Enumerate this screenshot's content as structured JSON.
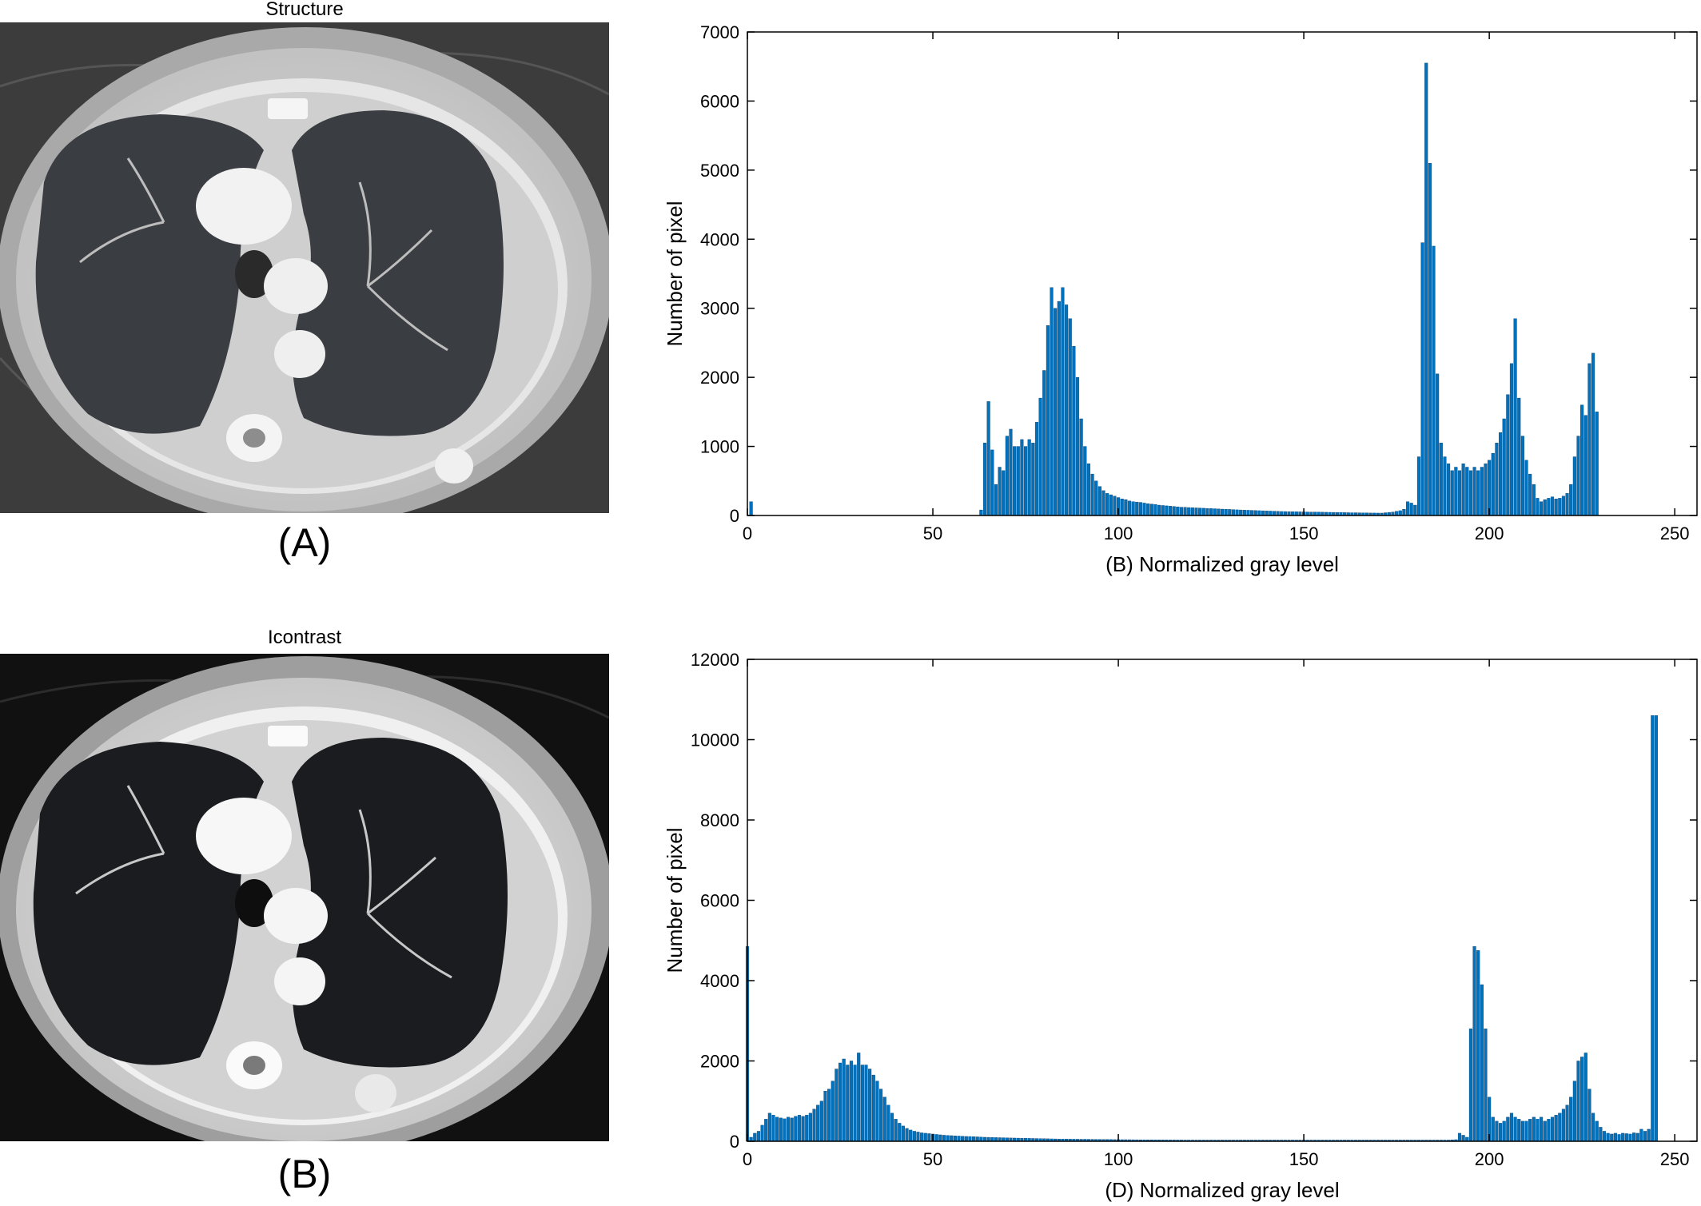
{
  "panels": {
    "a": {
      "title": "Structure",
      "letter": "(A)"
    },
    "b": {
      "title": "Icontrast",
      "letter": "(B)"
    }
  },
  "colors": {
    "bar": "#0072BD",
    "bar_edge": "#0b3f6e",
    "axis": "#000000"
  },
  "chart_data": [
    {
      "type": "bar",
      "xlabel": "(B) Normalized gray level",
      "ylabel": "Number of pixel",
      "xlim": [
        0,
        256
      ],
      "ylim": [
        0,
        7000
      ],
      "xticks": [
        0,
        50,
        100,
        150,
        200,
        250
      ],
      "yticks": [
        0,
        1000,
        2000,
        3000,
        4000,
        5000,
        6000,
        7000
      ],
      "x_start": 0,
      "values": [
        0,
        200,
        0,
        0,
        0,
        0,
        0,
        0,
        0,
        0,
        0,
        0,
        0,
        0,
        0,
        0,
        0,
        0,
        0,
        0,
        0,
        0,
        0,
        0,
        0,
        0,
        0,
        0,
        0,
        0,
        0,
        0,
        0,
        0,
        0,
        0,
        0,
        0,
        0,
        0,
        0,
        0,
        0,
        0,
        0,
        0,
        0,
        0,
        0,
        0,
        0,
        0,
        0,
        0,
        0,
        0,
        0,
        0,
        0,
        0,
        0,
        0,
        0,
        80,
        1050,
        1650,
        950,
        450,
        700,
        650,
        1150,
        1250,
        1000,
        1000,
        1100,
        1000,
        1100,
        1050,
        1350,
        1700,
        2100,
        2750,
        3300,
        3000,
        3100,
        3300,
        3050,
        2850,
        2450,
        2000,
        1400,
        1000,
        750,
        600,
        500,
        420,
        360,
        320,
        300,
        280,
        260,
        240,
        230,
        210,
        200,
        195,
        190,
        180,
        170,
        165,
        160,
        150,
        145,
        140,
        135,
        130,
        125,
        120,
        118,
        115,
        112,
        110,
        108,
        105,
        102,
        100,
        98,
        95,
        92,
        90,
        88,
        85,
        82,
        80,
        78,
        76,
        74,
        72,
        70,
        68,
        66,
        64,
        62,
        60,
        58,
        57,
        56,
        55,
        54,
        53,
        52,
        51,
        50,
        50,
        49,
        48,
        47,
        46,
        45,
        44,
        43,
        42,
        41,
        40,
        40,
        39,
        38,
        37,
        36,
        36,
        35,
        35,
        40,
        45,
        50,
        60,
        70,
        90,
        200,
        180,
        150,
        850,
        3950,
        6550,
        5100,
        3900,
        2050,
        1050,
        850,
        750,
        650,
        700,
        650,
        750,
        700,
        650,
        700,
        650,
        700,
        750,
        800,
        900,
        1050,
        1200,
        1400,
        1750,
        2200,
        2850,
        1700,
        1150,
        800,
        600,
        450,
        250,
        200,
        230,
        250,
        270,
        240,
        250,
        280,
        320,
        450,
        850,
        1150,
        1600,
        1450,
        2200,
        2350,
        1500
      ]
    },
    {
      "type": "bar",
      "xlabel": "(D) Normalized gray level",
      "ylabel": "Number of pixel",
      "xlim": [
        0,
        256
      ],
      "ylim": [
        0,
        12000
      ],
      "xticks": [
        0,
        50,
        100,
        150,
        200,
        250
      ],
      "yticks": [
        0,
        2000,
        4000,
        6000,
        8000,
        10000,
        12000
      ],
      "x_start": 0,
      "values": [
        4850,
        100,
        200,
        250,
        400,
        550,
        700,
        650,
        600,
        580,
        560,
        600,
        580,
        620,
        650,
        620,
        650,
        700,
        800,
        900,
        1000,
        1250,
        1300,
        1500,
        1800,
        1950,
        2050,
        1900,
        2000,
        1900,
        2200,
        1900,
        1900,
        1800,
        1650,
        1500,
        1300,
        1100,
        900,
        700,
        550,
        450,
        380,
        320,
        280,
        250,
        230,
        210,
        200,
        190,
        180,
        170,
        160,
        150,
        145,
        140,
        135,
        130,
        125,
        120,
        118,
        115,
        110,
        105,
        100,
        98,
        95,
        92,
        90,
        88,
        85,
        82,
        80,
        78,
        76,
        74,
        72,
        70,
        68,
        66,
        64,
        62,
        60,
        58,
        56,
        55,
        54,
        53,
        52,
        51,
        50,
        50,
        49,
        48,
        47,
        46,
        45,
        44,
        43,
        42,
        41,
        40,
        40,
        39,
        38,
        37,
        36,
        36,
        35,
        35,
        34,
        34,
        33,
        33,
        32,
        32,
        31,
        31,
        30,
        30,
        30,
        30,
        30,
        30,
        30,
        30,
        30,
        30,
        30,
        30,
        30,
        30,
        30,
        30,
        30,
        30,
        30,
        30,
        30,
        30,
        30,
        30,
        30,
        30,
        30,
        30,
        30,
        30,
        30,
        30,
        30,
        30,
        30,
        30,
        30,
        30,
        30,
        30,
        30,
        30,
        30,
        30,
        30,
        30,
        30,
        30,
        30,
        30,
        30,
        30,
        30,
        30,
        30,
        30,
        30,
        30,
        30,
        30,
        30,
        30,
        30,
        30,
        30,
        30,
        30,
        30,
        30,
        30,
        30,
        30,
        35,
        40,
        200,
        150,
        100,
        2800,
        4850,
        4750,
        3900,
        2800,
        1100,
        600,
        500,
        450,
        500,
        600,
        700,
        600,
        550,
        500,
        500,
        550,
        600,
        550,
        600,
        500,
        550,
        600,
        650,
        700,
        800,
        900,
        1100,
        1500,
        2000,
        2100,
        2200,
        1300,
        700,
        500,
        350,
        250,
        200,
        180,
        200,
        170,
        200,
        190,
        180,
        210,
        200,
        300,
        250,
        300,
        10600,
        10600
      ]
    }
  ]
}
